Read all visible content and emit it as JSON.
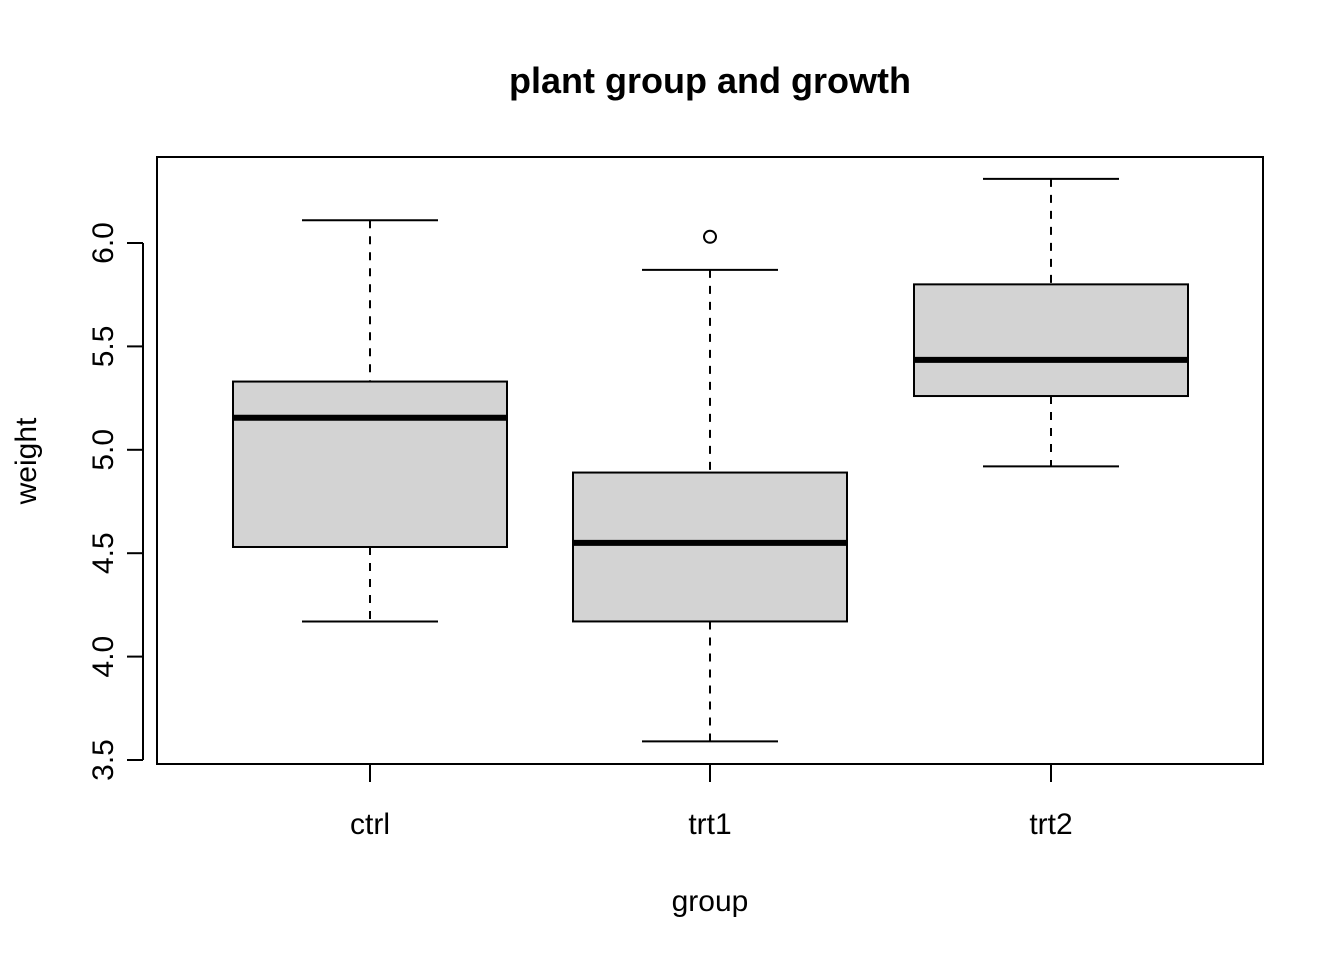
{
  "chart_data": {
    "type": "boxplot",
    "title": "plant group and growth",
    "xlabel": "group",
    "ylabel": "weight",
    "ylim": [
      3.5,
      6.4
    ],
    "yticks": [
      "3.5",
      "4.0",
      "4.5",
      "5.0",
      "5.5",
      "6.0"
    ],
    "categories": [
      "ctrl",
      "trt1",
      "trt2"
    ],
    "boxes": [
      {
        "category": "ctrl",
        "whisker_low": 4.17,
        "q1": 4.53,
        "median": 5.155,
        "q3": 5.33,
        "whisker_high": 6.11,
        "outliers": []
      },
      {
        "category": "trt1",
        "whisker_low": 3.59,
        "q1": 4.17,
        "median": 4.55,
        "q3": 4.89,
        "whisker_high": 5.87,
        "outliers": [
          6.03
        ]
      },
      {
        "category": "trt2",
        "whisker_low": 4.92,
        "q1": 5.26,
        "median": 5.435,
        "q3": 5.8,
        "whisker_high": 6.31,
        "outliers": []
      }
    ],
    "box_fill": "#d3d3d3",
    "grid": false,
    "legend": "none"
  }
}
